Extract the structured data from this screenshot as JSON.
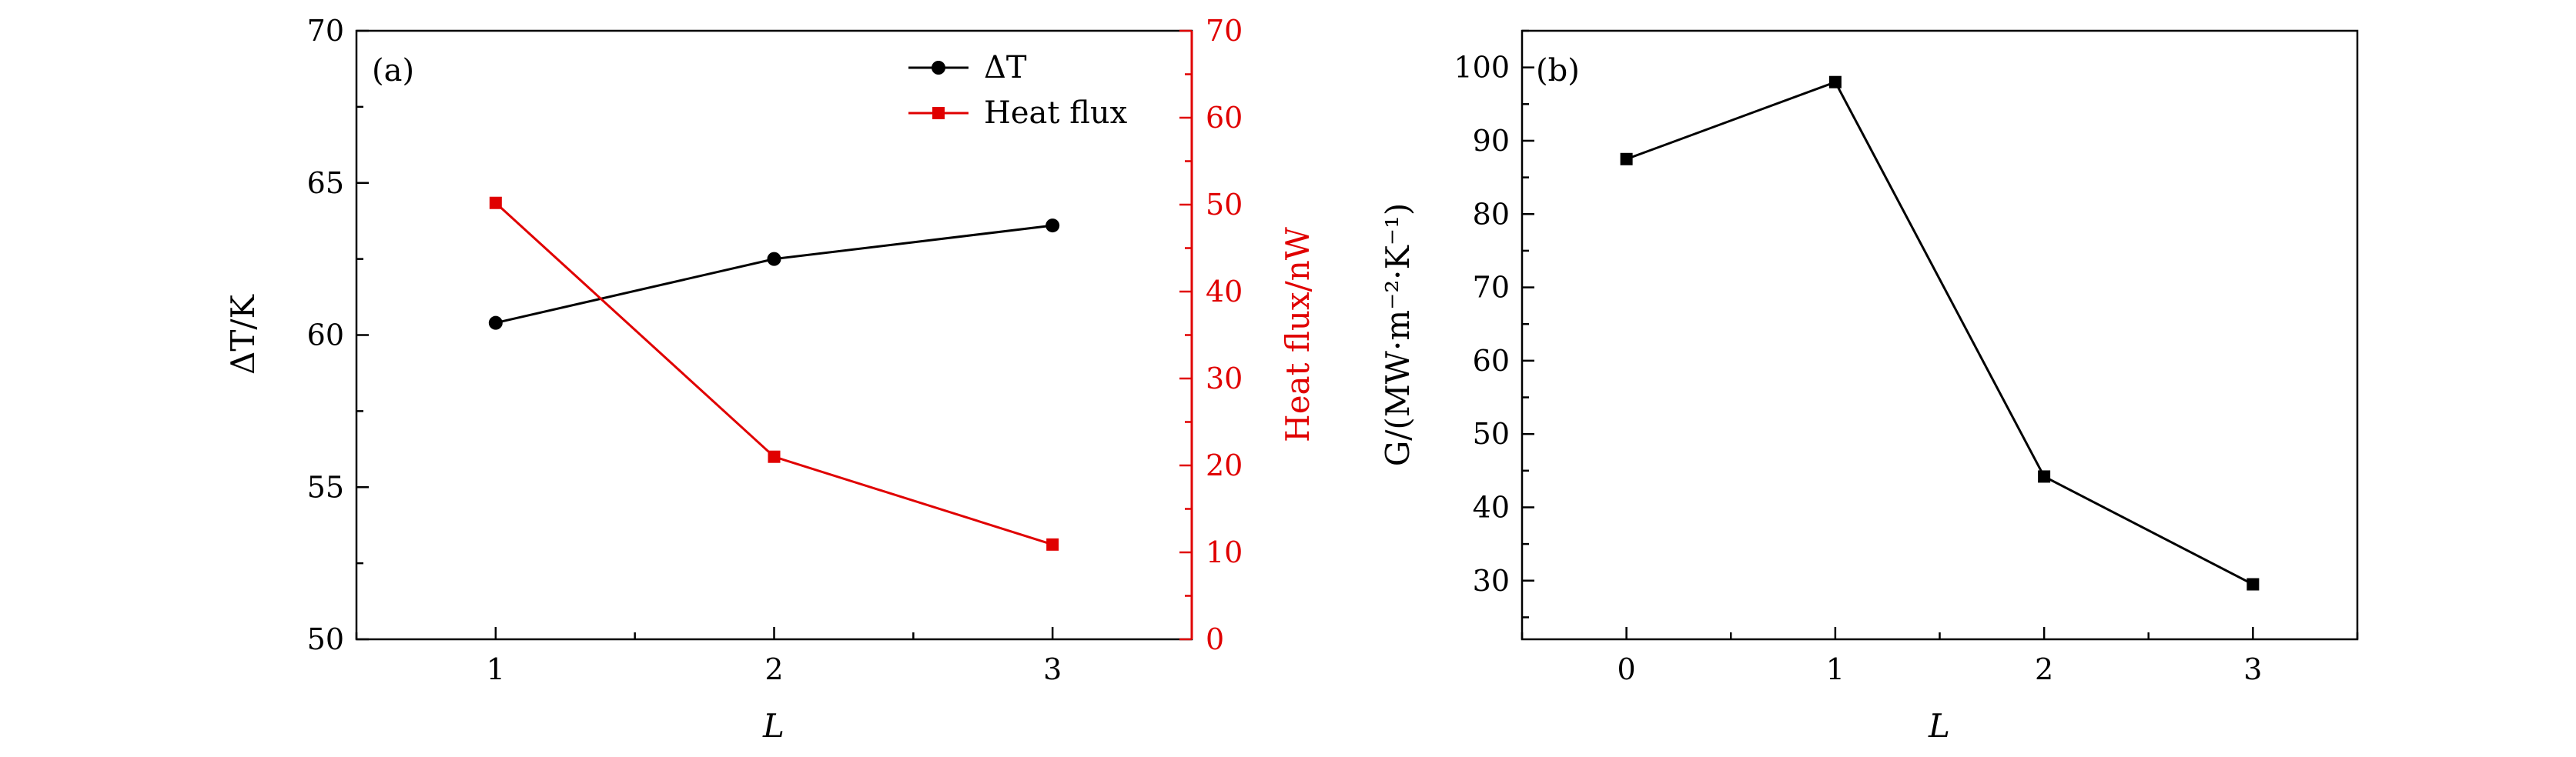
{
  "chart_data": [
    {
      "type": "line",
      "panel_label": "(a)",
      "x": [
        1,
        2,
        3
      ],
      "xlim": [
        0.5,
        3.5
      ],
      "xticks": [
        "1",
        "2",
        "3"
      ],
      "xlabel": "L",
      "ylabel": "ΔT/K",
      "ylim": [
        50,
        70
      ],
      "yticks": [
        "50",
        "55",
        "60",
        "65",
        "70"
      ],
      "y2label": "Heat flux/nW",
      "y2lim": [
        0,
        70
      ],
      "y2ticks": [
        "0",
        "10",
        "20",
        "30",
        "40",
        "50",
        "60",
        "70"
      ],
      "legend_position": "top-right",
      "series": [
        {
          "name": "ΔT",
          "legend_label": "ΔT",
          "axis": "left",
          "color": "#000000",
          "marker": "circle",
          "values": [
            60.4,
            62.5,
            63.6
          ]
        },
        {
          "name": "Heat flux",
          "legend_label": "Heat flux",
          "axis": "right",
          "color": "#e00000",
          "marker": "square",
          "values": [
            50.2,
            21.0,
            10.9
          ]
        }
      ]
    },
    {
      "type": "line",
      "panel_label": "(b)",
      "x": [
        0,
        1,
        2,
        3
      ],
      "xlim": [
        -0.5,
        3.5
      ],
      "xticks": [
        "0",
        "1",
        "2",
        "3"
      ],
      "xlabel": "L",
      "ylabel": "G/(MW·m⁻²·K⁻¹)",
      "ylim": [
        22,
        105
      ],
      "yticks": [
        "30",
        "40",
        "50",
        "60",
        "70",
        "80",
        "90",
        "100"
      ],
      "series": [
        {
          "name": "G",
          "color": "#000000",
          "marker": "square",
          "values": [
            87.5,
            98.0,
            44.2,
            29.5
          ]
        }
      ]
    }
  ]
}
